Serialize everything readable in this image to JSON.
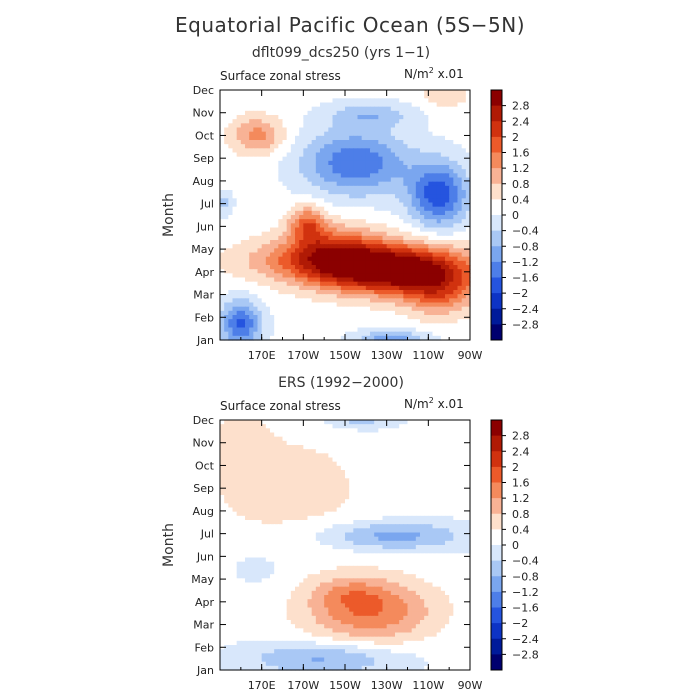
{
  "figure": {
    "title": "Equatorial Pacific Ocean (5S−5N)",
    "ylabel": "Month"
  },
  "colorbar": {
    "levels": [
      "2.8",
      "2.4",
      "2",
      "1.6",
      "1.2",
      "0.8",
      "0.4",
      "0",
      "−0.4",
      "−0.8",
      "−1.2",
      "−1.6",
      "−2",
      "−2.4",
      "−2.8"
    ],
    "colors": [
      "#8b0000",
      "#b01a05",
      "#d1320f",
      "#ec5a2a",
      "#f48a5c",
      "#f8b295",
      "#fde0cc",
      "#ffffff",
      "#d8e7fb",
      "#a9c8f5",
      "#7aa6ef",
      "#4d7ee8",
      "#2554df",
      "#0d33c5",
      "#001a9a",
      "#00006f"
    ]
  },
  "chart_data": [
    {
      "type": "heatmap",
      "title": "dflt099_dcs250 (yrs 1−1)",
      "left_label": "Surface zonal stress",
      "units_base": "N/m",
      "units_exp": "2",
      "units_scale": " x.01",
      "xlabel": "",
      "ylabel": "Month",
      "x_ticks": [
        "170E",
        "170W",
        "150W",
        "130W",
        "110W",
        "90W"
      ],
      "x_lon": [
        170,
        190,
        210,
        230,
        250,
        270
      ],
      "xlim": [
        150,
        270
      ],
      "y_ticks": [
        "Jan",
        "Feb",
        "Mar",
        "Apr",
        "May",
        "Jun",
        "Jul",
        "Aug",
        "Sep",
        "Oct",
        "Nov",
        "Dec"
      ],
      "ylim": [
        1,
        12
      ],
      "clim": [
        -3.2,
        3.2
      ],
      "features": [
        {
          "lon": 234,
          "mon": 4.1,
          "slon": 26,
          "smon": 0.75,
          "amp": 3.4
        },
        {
          "lon": 205,
          "mon": 4.9,
          "slon": 16,
          "smon": 0.8,
          "amp": 1.6
        },
        {
          "lon": 192,
          "mon": 6.1,
          "slon": 6,
          "smon": 0.55,
          "amp": 1.5
        },
        {
          "lon": 255,
          "mon": 3.0,
          "slon": 12,
          "smon": 0.7,
          "amp": 1.2
        },
        {
          "lon": 168,
          "mon": 10.0,
          "slon": 9,
          "smon": 0.6,
          "amp": 1.2
        },
        {
          "lon": 183,
          "mon": 4.5,
          "slon": 22,
          "smon": 0.65,
          "amp": 0.8
        },
        {
          "lon": 258,
          "mon": 11.8,
          "slon": 8,
          "smon": 0.45,
          "amp": 0.6
        },
        {
          "lon": 215,
          "mon": 8.8,
          "slon": 18,
          "smon": 1.0,
          "amp": -1.7
        },
        {
          "lon": 255,
          "mon": 7.4,
          "slon": 10,
          "smon": 1.0,
          "amp": -2.0
        },
        {
          "lon": 160,
          "mon": 1.7,
          "slon": 7,
          "smon": 0.75,
          "amp": -1.8
        },
        {
          "lon": 222,
          "mon": 10.9,
          "slon": 15,
          "smon": 0.4,
          "amp": -0.8
        },
        {
          "lon": 232,
          "mon": 1.0,
          "slon": 12,
          "smon": 0.3,
          "amp": -1.2
        },
        {
          "lon": 152,
          "mon": 7.0,
          "slon": 3,
          "smon": 0.35,
          "amp": -0.7
        }
      ],
      "background": 0.15
    },
    {
      "type": "heatmap",
      "title": "ERS (1992−2000)",
      "left_label": "Surface zonal stress",
      "units_base": "N/m",
      "units_exp": "2",
      "units_scale": " x.01",
      "xlabel": "",
      "ylabel": "Month",
      "x_ticks": [
        "170E",
        "170W",
        "150W",
        "130W",
        "110W",
        "90W"
      ],
      "x_lon": [
        170,
        190,
        210,
        230,
        250,
        270
      ],
      "xlim": [
        150,
        270
      ],
      "y_ticks": [
        "Jan",
        "Feb",
        "Mar",
        "Apr",
        "May",
        "Jun",
        "Jul",
        "Aug",
        "Sep",
        "Oct",
        "Nov",
        "Dec"
      ],
      "ylim": [
        1,
        12
      ],
      "clim": [
        -3.2,
        3.2
      ],
      "features": [
        {
          "lon": 222,
          "mon": 3.6,
          "slon": 22,
          "smon": 1.0,
          "amp": 1.5
        },
        {
          "lon": 212,
          "mon": 4.4,
          "slon": 12,
          "smon": 0.5,
          "amp": 0.5
        },
        {
          "lon": 185,
          "mon": 9.0,
          "slon": 30,
          "smon": 2.0,
          "amp": 0.45
        },
        {
          "lon": 160,
          "mon": 11.0,
          "slon": 10,
          "smon": 1.5,
          "amp": 0.35
        },
        {
          "lon": 233,
          "mon": 6.9,
          "slon": 24,
          "smon": 0.45,
          "amp": -1.1
        },
        {
          "lon": 200,
          "mon": 1.5,
          "slon": 26,
          "smon": 0.5,
          "amp": -1.0
        },
        {
          "lon": 218,
          "mon": 12.0,
          "slon": 12,
          "smon": 0.3,
          "amp": -0.7
        },
        {
          "lon": 168,
          "mon": 5.5,
          "slon": 10,
          "smon": 0.6,
          "amp": -0.3
        }
      ],
      "background": 0.1
    }
  ]
}
